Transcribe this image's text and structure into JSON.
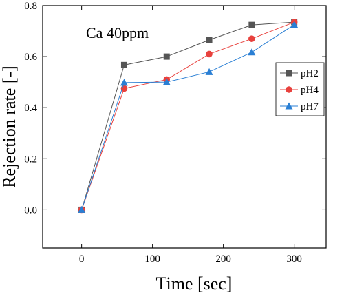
{
  "chart_data": {
    "type": "line",
    "annotation": "Ca 40ppm",
    "xlabel": "Time [sec]",
    "ylabel": "Rejection rate [-]",
    "xlim": [
      -55,
      345
    ],
    "ylim": [
      -0.15,
      0.8
    ],
    "x_ticks": [
      0,
      100,
      200,
      300
    ],
    "y_ticks": [
      0.0,
      0.2,
      0.4,
      0.6,
      0.8
    ],
    "x_tick_labels": [
      "0",
      "100",
      "200",
      "300"
    ],
    "y_tick_labels": [
      "0.0",
      "0.2",
      "0.4",
      "0.6",
      "0.8"
    ],
    "legend_position": "top-right",
    "x": [
      0,
      60,
      120,
      180,
      240,
      300
    ],
    "series": [
      {
        "name": "pH2",
        "color": "#555555",
        "marker": "square",
        "values": [
          0.0,
          0.567,
          0.6,
          0.665,
          0.724,
          0.735
        ]
      },
      {
        "name": "pH4",
        "color": "#e8413d",
        "marker": "circle",
        "values": [
          0.0,
          0.475,
          0.51,
          0.61,
          0.67,
          0.735
        ]
      },
      {
        "name": "pH7",
        "color": "#2a7fd4",
        "marker": "triangle",
        "values": [
          0.0,
          0.498,
          0.5,
          0.54,
          0.617,
          0.725
        ]
      }
    ]
  }
}
